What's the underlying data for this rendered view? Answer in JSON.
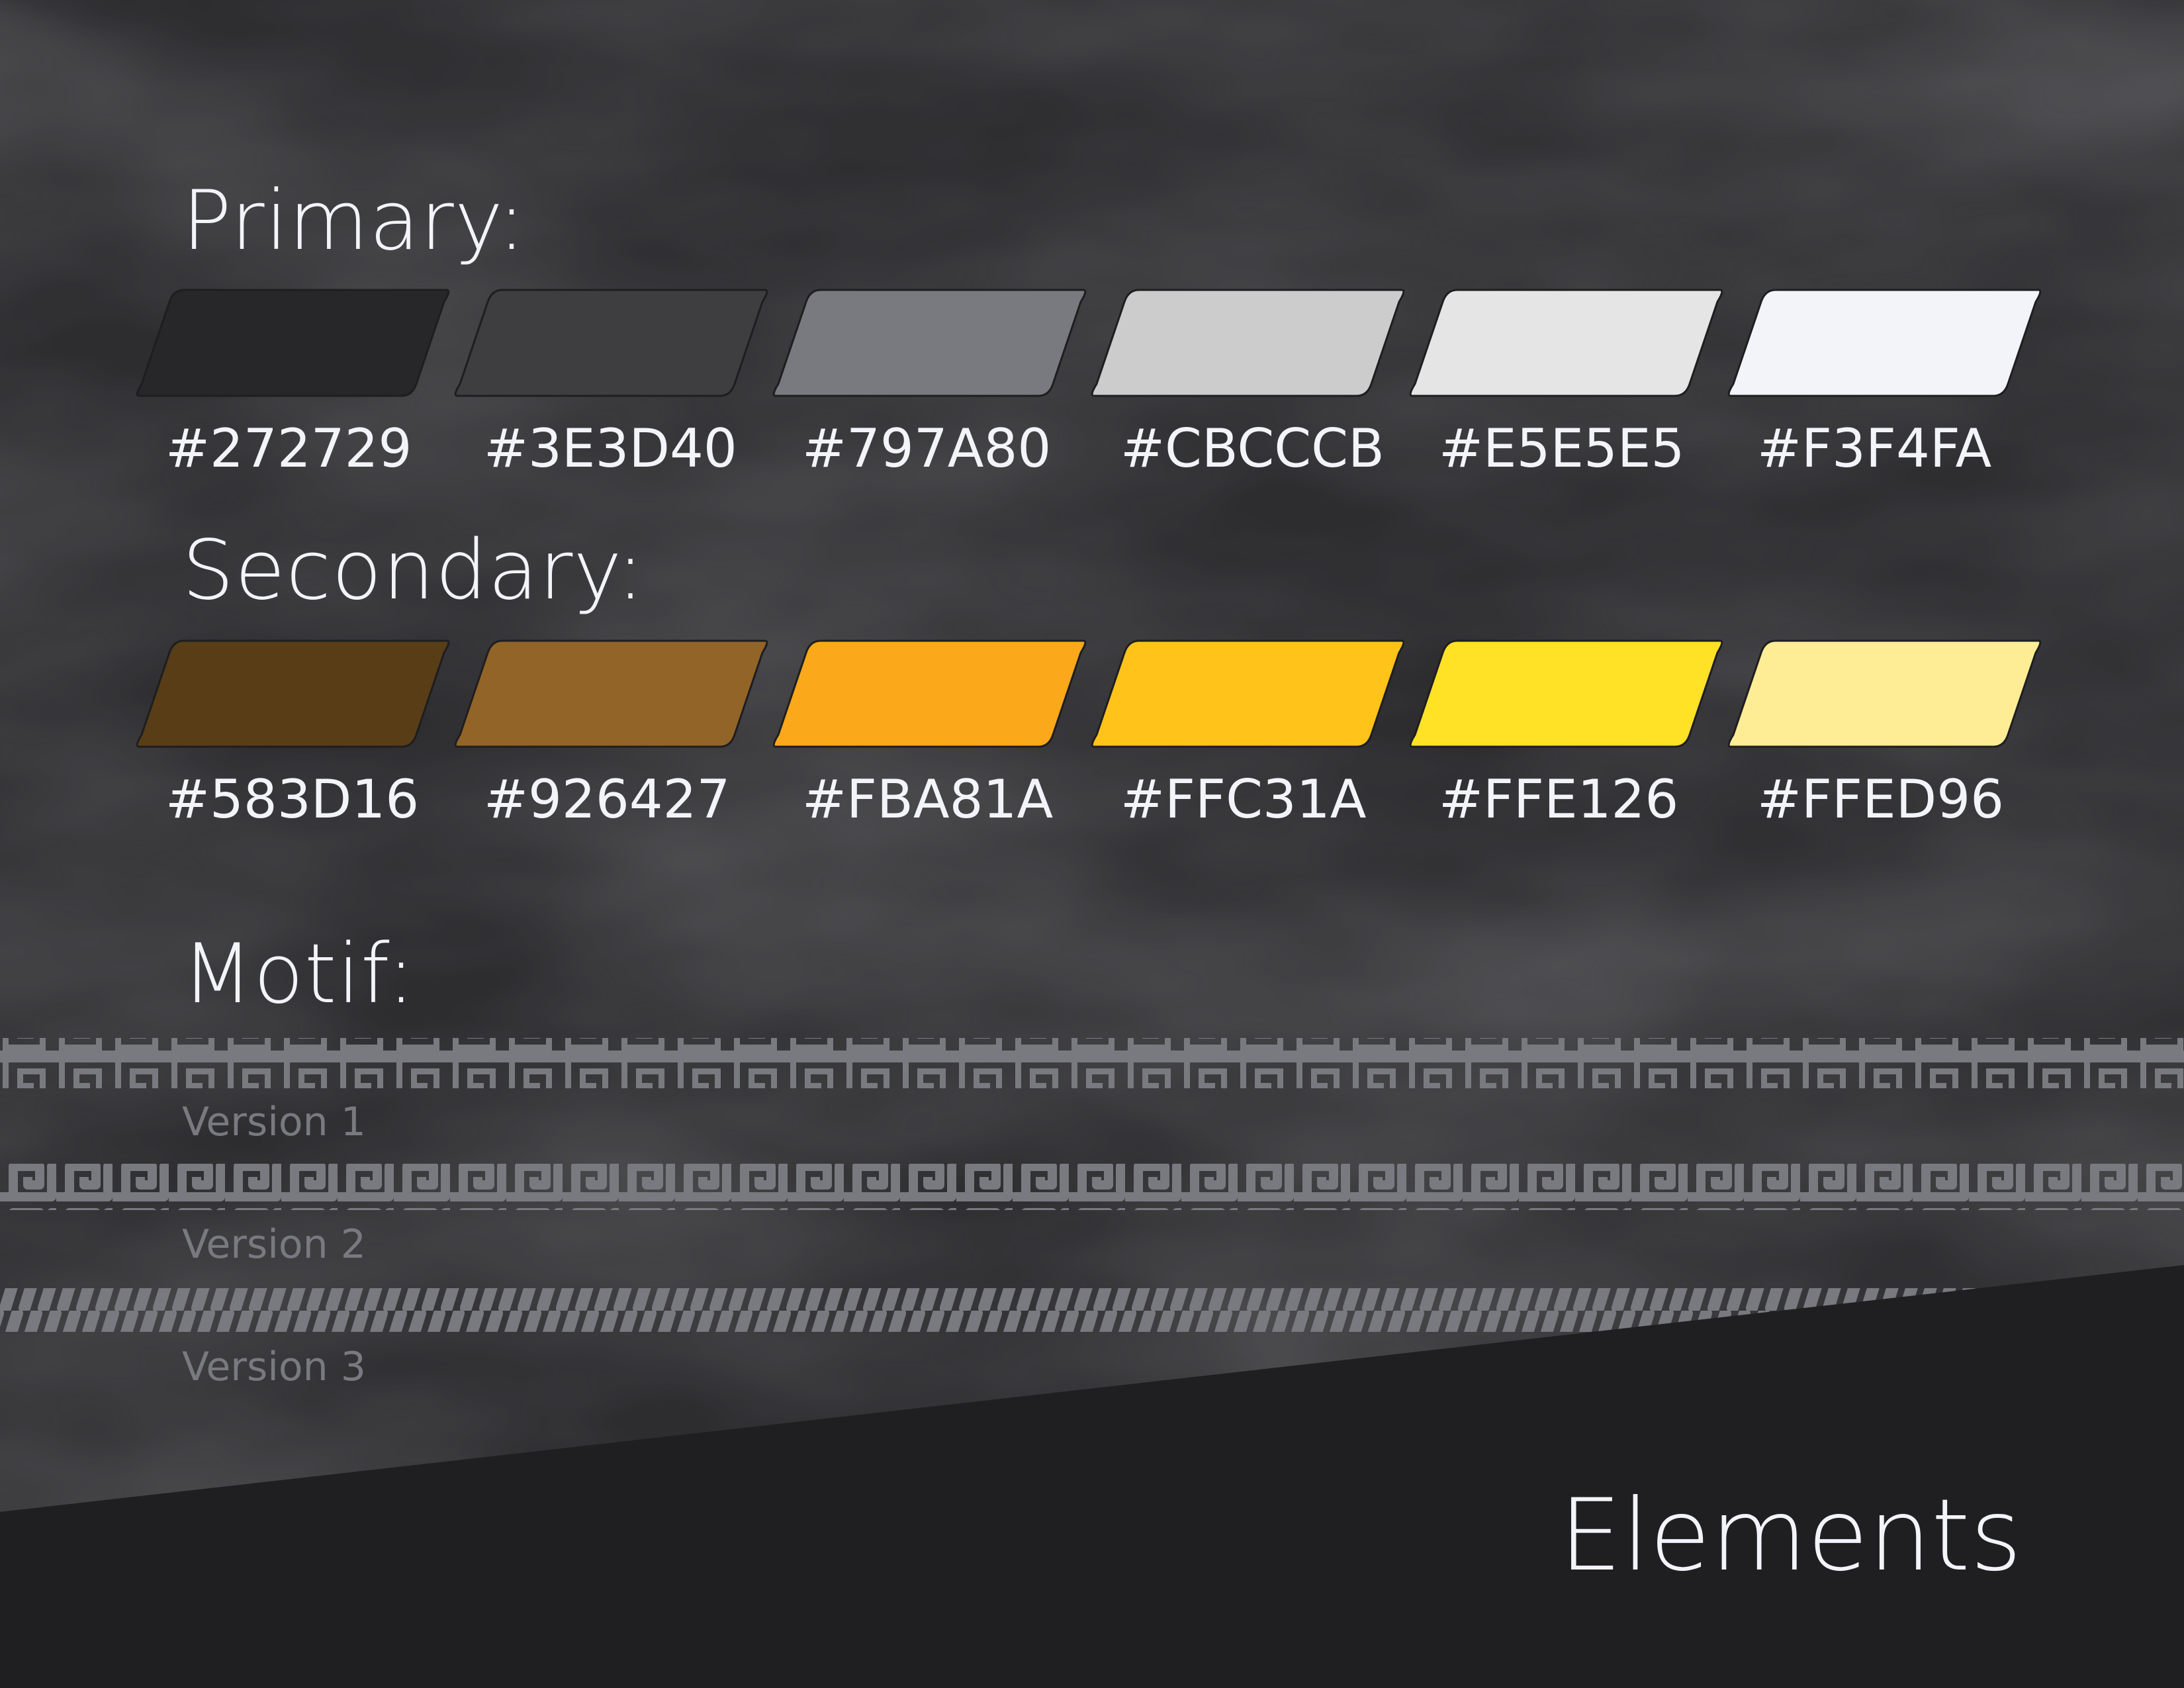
{
  "primary": {
    "title": "Primary:",
    "swatches": [
      {
        "hex": "#272729",
        "color": "#272729"
      },
      {
        "hex": "#3E3D40",
        "color": "#3E3D40"
      },
      {
        "hex": "#797A80",
        "color": "#797A80"
      },
      {
        "hex": "#CBCCCB",
        "color": "#CBCCCB"
      },
      {
        "hex": "#E5E5E5",
        "color": "#E5E5E5"
      },
      {
        "hex": "#F3F4FA",
        "color": "#F3F4FA"
      }
    ]
  },
  "secondary": {
    "title": "Secondary:",
    "swatches": [
      {
        "hex": "#583D16",
        "color": "#583D16"
      },
      {
        "hex": "#926427",
        "color": "#926427"
      },
      {
        "hex": "#FBA81A",
        "color": "#FBA81A"
      },
      {
        "hex": "#FFC31A",
        "color": "#FFC31A"
      },
      {
        "hex": "#FFE126",
        "color": "#FFE126"
      },
      {
        "hex": "#FFED96",
        "color": "#FFED96"
      }
    ]
  },
  "motif": {
    "title": "Motif:",
    "color": "#797A80",
    "versions": [
      {
        "label": "Version 1",
        "pattern": "greek-key"
      },
      {
        "label": "Version 2",
        "pattern": "meander-wave"
      },
      {
        "label": "Version 3",
        "pattern": "rope"
      }
    ]
  },
  "footer": {
    "title": "Elements"
  },
  "colors": {
    "background": "#2D2D30",
    "footer_band": "#1F1F21"
  }
}
